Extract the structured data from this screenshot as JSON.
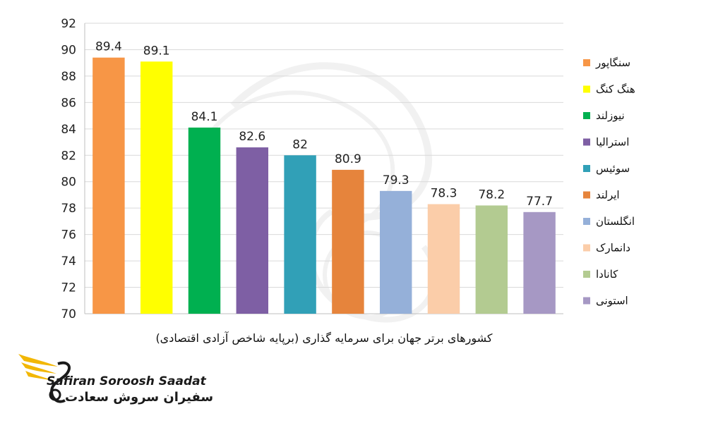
{
  "chart_data": {
    "type": "bar",
    "categories": [
      "سنگاپور",
      "هنگ کنگ",
      "نیوزلند",
      "استرالیا",
      "سوئیس",
      "ایرلند",
      "انگلستان",
      "دانمارک",
      "کانادا",
      "استونی"
    ],
    "values": [
      89.4,
      89.1,
      84.1,
      82.6,
      82,
      80.9,
      79.3,
      78.3,
      78.2,
      77.7
    ],
    "value_labels": [
      "89.4",
      "89.1",
      "84.1",
      "82.6",
      "82",
      "80.9",
      "79.3",
      "78.3",
      "78.2",
      "77.7"
    ],
    "colors": [
      "#F79646",
      "#FFFF00",
      "#00B050",
      "#7E5FA4",
      "#31A0B7",
      "#E6843C",
      "#95B0D9",
      "#FBCDA9",
      "#B3CB91",
      "#A698C4"
    ],
    "xlabel": "کشورهای برتر جهان برای سرمایه گذاری (برپایه شاخص آزادی اقتصادی)",
    "ylabel": "",
    "title": "",
    "ylim": [
      70,
      92
    ],
    "yticks": [
      "70",
      "72",
      "74",
      "76",
      "78",
      "80",
      "82",
      "84",
      "86",
      "88",
      "90",
      "92"
    ],
    "grid": true,
    "legend": "right"
  },
  "brand": {
    "name_en": "Safiran Soroosh Saadat",
    "name_fa": "سفیران سروش سعادت"
  }
}
